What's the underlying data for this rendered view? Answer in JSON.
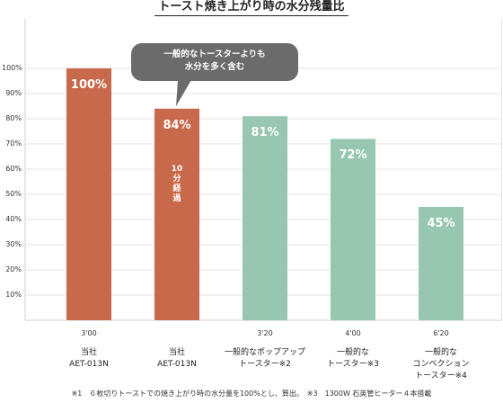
{
  "chart_data": {
    "type": "bar",
    "title": "トースト焼き上がり時の水分残量比",
    "ylim": [
      0,
      100
    ],
    "yticks": [
      "10%",
      "20%",
      "30%",
      "40%",
      "50%",
      "60%",
      "70%",
      "80%",
      "90%",
      "100%"
    ],
    "grid": true,
    "bars": [
      {
        "value": 100,
        "label": "100%",
        "time": "3'00",
        "category": [
          "当社",
          "AET-013N"
        ],
        "color": "#C9694B",
        "note": ""
      },
      {
        "value": 84,
        "label": "84%",
        "time": "",
        "category": [
          "当社",
          "AET-013N"
        ],
        "color": "#C9694B",
        "note": "10分経過"
      },
      {
        "value": 81,
        "label": "81%",
        "time": "3'20",
        "category": [
          "一般的なポップアップ",
          "トースター※2"
        ],
        "color": "#97C7B0",
        "note": ""
      },
      {
        "value": 72,
        "label": "72%",
        "time": "4'00",
        "category": [
          "一般的な",
          "トースター※3"
        ],
        "color": "#97C7B0",
        "note": ""
      },
      {
        "value": 45,
        "label": "45%",
        "time": "6'20",
        "category": [
          "一般的な",
          "コンベクション",
          "トースター※4"
        ],
        "color": "#97C7B0",
        "note": ""
      }
    ],
    "callout": {
      "lines": [
        "一般的なトースターよりも",
        "水分を多く含む"
      ],
      "color": "#6B6B6B"
    },
    "footnote": "※1　６枚切りトーストでの焼き上がり時の水分量を100%とし、算出。　※3　1300W 石英管ヒーター４本搭載"
  }
}
